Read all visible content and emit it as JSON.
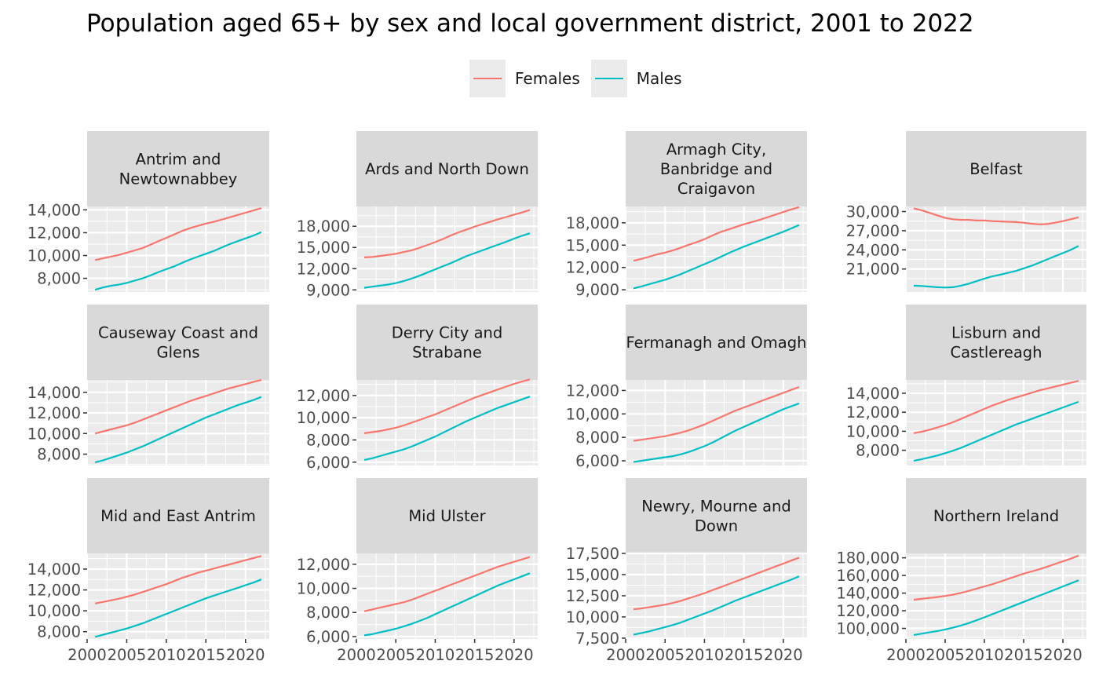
{
  "chart_data": {
    "type": "line",
    "title": "Population aged 65+ by sex and local government district, 2001 to 2022",
    "legend": {
      "position": "top",
      "entries": [
        {
          "name": "Females",
          "color": "#f8766d"
        },
        {
          "name": "Males",
          "color": "#00bfc4"
        }
      ]
    },
    "xlim": [
      2000,
      2023
    ],
    "x_ticks": [
      2000,
      2005,
      2010,
      2015,
      2020
    ],
    "x_tick_labels": [
      "2000",
      "2005",
      "2010",
      "2015",
      "2020"
    ],
    "grid": true,
    "x": [
      2001,
      2002,
      2003,
      2004,
      2005,
      2006,
      2007,
      2008,
      2009,
      2010,
      2011,
      2012,
      2013,
      2014,
      2015,
      2016,
      2017,
      2018,
      2019,
      2020,
      2021,
      2022
    ],
    "panels": [
      {
        "title": "Antrim and Newtownabbey",
        "ylim": [
          6800,
          14300
        ],
        "y_ticks": [
          8000,
          10000,
          12000,
          14000
        ],
        "y_tick_labels": [
          "8,000",
          "10,000",
          "12,000",
          "14,000"
        ],
        "series": [
          {
            "name": "Females",
            "values": [
              9600,
              9750,
              9900,
              10050,
              10250,
              10450,
              10650,
              10950,
              11250,
              11550,
              11850,
              12150,
              12400,
              12600,
              12800,
              12950,
              13150,
              13350,
              13550,
              13750,
              13950,
              14150
            ]
          },
          {
            "name": "Males",
            "values": [
              7000,
              7200,
              7350,
              7450,
              7600,
              7800,
              8000,
              8250,
              8550,
              8800,
              9050,
              9350,
              9650,
              9900,
              10150,
              10400,
              10700,
              11000,
              11250,
              11500,
              11750,
              12050
            ]
          }
        ]
      },
      {
        "title": "Ards and North Down",
        "ylim": [
          8700,
          20800
        ],
        "y_ticks": [
          9000,
          12000,
          15000,
          18000
        ],
        "y_tick_labels": [
          "9,000",
          "12,000",
          "15,000",
          "18,000"
        ],
        "series": [
          {
            "name": "Females",
            "values": [
              13600,
              13650,
              13800,
              13950,
              14100,
              14350,
              14600,
              14950,
              15350,
              15750,
              16200,
              16700,
              17150,
              17550,
              17950,
              18300,
              18650,
              19000,
              19300,
              19650,
              19950,
              20300
            ]
          },
          {
            "name": "Males",
            "values": [
              9300,
              9450,
              9600,
              9750,
              9950,
              10250,
              10600,
              11000,
              11450,
              11900,
              12350,
              12800,
              13300,
              13800,
              14200,
              14600,
              15000,
              15400,
              15800,
              16250,
              16650,
              17000
            ]
          }
        ]
      },
      {
        "title": "Armagh City, Banbridge and Craigavon",
        "ylim": [
          8700,
          20200
        ],
        "y_ticks": [
          9000,
          12000,
          15000,
          18000
        ],
        "y_tick_labels": [
          "9,000",
          "12,000",
          "15,000",
          "18,000"
        ],
        "series": [
          {
            "name": "Females",
            "values": [
              12900,
              13150,
              13450,
              13750,
              14000,
              14300,
              14650,
              15050,
              15400,
              15800,
              16300,
              16750,
              17100,
              17450,
              17800,
              18100,
              18400,
              18750,
              19100,
              19450,
              19800,
              20100
            ]
          },
          {
            "name": "Males",
            "values": [
              9200,
              9450,
              9750,
              10050,
              10350,
              10700,
              11100,
              11550,
              12000,
              12450,
              12900,
              13400,
              13900,
              14350,
              14800,
              15200,
              15600,
              16000,
              16400,
              16800,
              17250,
              17700
            ]
          }
        ]
      },
      {
        "title": "Belfast",
        "ylim": [
          17400,
          30800
        ],
        "y_ticks": [
          21000,
          24000,
          27000,
          30000
        ],
        "y_tick_labels": [
          "21,000",
          "24,000",
          "27,000",
          "30,000"
        ],
        "series": [
          {
            "name": "Females",
            "values": [
              30500,
              30200,
              29800,
              29400,
              29000,
              28800,
              28700,
              28700,
              28600,
              28600,
              28500,
              28450,
              28400,
              28350,
              28250,
              28100,
              28000,
              28050,
              28250,
              28500,
              28800,
              29100
            ]
          },
          {
            "name": "Males",
            "values": [
              18400,
              18350,
              18250,
              18150,
              18100,
              18150,
              18400,
              18700,
              19100,
              19500,
              19850,
              20100,
              20400,
              20700,
              21100,
              21500,
              22000,
              22500,
              23000,
              23500,
              24000,
              24600
            ]
          }
        ]
      },
      {
        "title": "Causeway Coast and Glens",
        "ylim": [
          6900,
          15200
        ],
        "y_ticks": [
          8000,
          10000,
          12000,
          14000
        ],
        "y_tick_labels": [
          "8,000",
          "10,000",
          "12,000",
          "14,000"
        ],
        "series": [
          {
            "name": "Females",
            "values": [
              10000,
              10200,
              10400,
              10600,
              10800,
              11050,
              11350,
              11650,
              11950,
              12250,
              12550,
              12850,
              13150,
              13400,
              13650,
              13900,
              14150,
              14400,
              14600,
              14800,
              15000,
              15200
            ]
          },
          {
            "name": "Males",
            "values": [
              7200,
              7400,
              7650,
              7900,
              8150,
              8450,
              8750,
              9100,
              9450,
              9800,
              10150,
              10500,
              10850,
              11200,
              11550,
              11850,
              12150,
              12450,
              12750,
              13000,
              13250,
              13550
            ]
          }
        ]
      },
      {
        "title": "Derry City and Strabane",
        "ylim": [
          5700,
          13400
        ],
        "y_ticks": [
          6000,
          8000,
          10000,
          12000
        ],
        "y_tick_labels": [
          "6,000",
          "8,000",
          "10,000",
          "12,000"
        ],
        "series": [
          {
            "name": "Females",
            "values": [
              8600,
              8700,
              8800,
              8950,
              9100,
              9300,
              9550,
              9800,
              10050,
              10300,
              10600,
              10900,
              11200,
              11500,
              11800,
              12050,
              12300,
              12550,
              12800,
              13050,
              13250,
              13450
            ]
          },
          {
            "name": "Males",
            "values": [
              6200,
              6350,
              6550,
              6750,
              6950,
              7150,
              7400,
              7700,
              8000,
              8300,
              8650,
              9000,
              9350,
              9700,
              10000,
              10300,
              10600,
              10900,
              11150,
              11400,
              11650,
              11900
            ]
          }
        ]
      },
      {
        "title": "Fermanagh and Omagh",
        "ylim": [
          5600,
          12900
        ],
        "y_ticks": [
          6000,
          8000,
          10000,
          12000
        ],
        "y_tick_labels": [
          "6,000",
          "8,000",
          "10,000",
          "12,000"
        ],
        "series": [
          {
            "name": "Females",
            "values": [
              7700,
              7800,
              7900,
              8000,
              8100,
              8250,
              8400,
              8600,
              8850,
              9100,
              9400,
              9700,
              10000,
              10300,
              10550,
              10800,
              11050,
              11300,
              11550,
              11800,
              12050,
              12300
            ]
          },
          {
            "name": "Males",
            "values": [
              5900,
              6000,
              6100,
              6200,
              6300,
              6400,
              6550,
              6750,
              7000,
              7250,
              7550,
              7900,
              8250,
              8600,
              8900,
              9200,
              9500,
              9800,
              10100,
              10400,
              10650,
              10900
            ]
          }
        ]
      },
      {
        "title": "Lisburn and Castlereagh",
        "ylim": [
          6400,
          15400
        ],
        "y_ticks": [
          8000,
          10000,
          12000,
          14000
        ],
        "y_tick_labels": [
          "8,000",
          "10,000",
          "12,000",
          "14,000"
        ],
        "series": [
          {
            "name": "Females",
            "values": [
              9800,
              9950,
              10150,
              10400,
              10650,
              10950,
              11300,
              11650,
              12000,
              12350,
              12700,
              13000,
              13300,
              13550,
              13800,
              14050,
              14300,
              14500,
              14700,
              14900,
              15100,
              15300
            ]
          },
          {
            "name": "Males",
            "values": [
              6900,
              7050,
              7250,
              7450,
              7700,
              7950,
              8250,
              8600,
              8950,
              9300,
              9650,
              10000,
              10350,
              10700,
              11000,
              11300,
              11600,
              11900,
              12200,
              12500,
              12800,
              13100
            ]
          }
        ]
      },
      {
        "title": "Mid and East Antrim",
        "ylim": [
          7300,
          15500
        ],
        "y_ticks": [
          8000,
          10000,
          12000,
          14000
        ],
        "y_tick_labels": [
          "8,000",
          "10,000",
          "12,000",
          "14,000"
        ],
        "series": [
          {
            "name": "Females",
            "values": [
              10700,
              10850,
              11000,
              11150,
              11350,
              11550,
              11800,
              12050,
              12300,
              12550,
              12850,
              13150,
              13400,
              13650,
              13850,
              14050,
              14250,
              14450,
              14650,
              14850,
              15050,
              15250
            ]
          },
          {
            "name": "Males",
            "values": [
              7500,
              7700,
              7900,
              8100,
              8300,
              8550,
              8800,
              9100,
              9400,
              9700,
              10000,
              10300,
              10600,
              10900,
              11200,
              11450,
              11700,
              11950,
              12200,
              12450,
              12700,
              13000
            ]
          }
        ]
      },
      {
        "title": "Mid Ulster",
        "ylim": [
          5800,
          12900
        ],
        "y_ticks": [
          6000,
          8000,
          10000,
          12000
        ],
        "y_tick_labels": [
          "6,000",
          "8,000",
          "10,000",
          "12,000"
        ],
        "series": [
          {
            "name": "Females",
            "values": [
              8100,
              8250,
              8400,
              8550,
              8700,
              8850,
              9050,
              9300,
              9550,
              9800,
              10050,
              10300,
              10550,
              10800,
              11050,
              11300,
              11550,
              11800,
              12000,
              12200,
              12400,
              12600
            ]
          },
          {
            "name": "Males",
            "values": [
              6100,
              6200,
              6350,
              6500,
              6650,
              6850,
              7050,
              7300,
              7550,
              7850,
              8150,
              8450,
              8750,
              9050,
              9350,
              9650,
              9950,
              10250,
              10500,
              10750,
              11000,
              11250
            ]
          }
        ]
      },
      {
        "title": "Newry, Mourne and Down",
        "ylim": [
          7400,
          17500
        ],
        "y_ticks": [
          7500,
          10000,
          12500,
          15000,
          17500
        ],
        "y_tick_labels": [
          "7,500",
          "10,000",
          "12,500",
          "15,000",
          "17,500"
        ],
        "series": [
          {
            "name": "Females",
            "values": [
              10900,
              11000,
              11150,
              11300,
              11450,
              11650,
              11900,
              12200,
              12500,
              12800,
              13150,
              13500,
              13850,
              14200,
              14550,
              14900,
              15250,
              15600,
              15950,
              16300,
              16650,
              17000
            ]
          },
          {
            "name": "Males",
            "values": [
              7900,
              8100,
              8300,
              8550,
              8800,
              9050,
              9350,
              9700,
              10050,
              10400,
              10750,
              11150,
              11550,
              11950,
              12300,
              12650,
              13000,
              13350,
              13700,
              14050,
              14400,
              14800
            ]
          }
        ]
      },
      {
        "title": "Northern Ireland",
        "ylim": [
          88000,
          185000
        ],
        "y_ticks": [
          100000,
          120000,
          140000,
          160000,
          180000
        ],
        "y_tick_labels": [
          "100,000",
          "120,000",
          "140,000",
          "160,000",
          "180,000"
        ],
        "series": [
          {
            "name": "Females",
            "values": [
              132500,
              133500,
              134500,
              135500,
              136800,
              138300,
              140200,
              142500,
              145000,
              147500,
              150000,
              153000,
              156000,
              159000,
              162000,
              164500,
              167000,
              170000,
              173000,
              176000,
              179000,
              182500
            ]
          },
          {
            "name": "Males",
            "values": [
              92500,
              94000,
              95500,
              97000,
              98800,
              100800,
              103200,
              106000,
              109200,
              112500,
              116000,
              119500,
              123000,
              126500,
              130000,
              133500,
              137000,
              140500,
              144000,
              147500,
              151000,
              154500
            ]
          }
        ]
      }
    ]
  }
}
